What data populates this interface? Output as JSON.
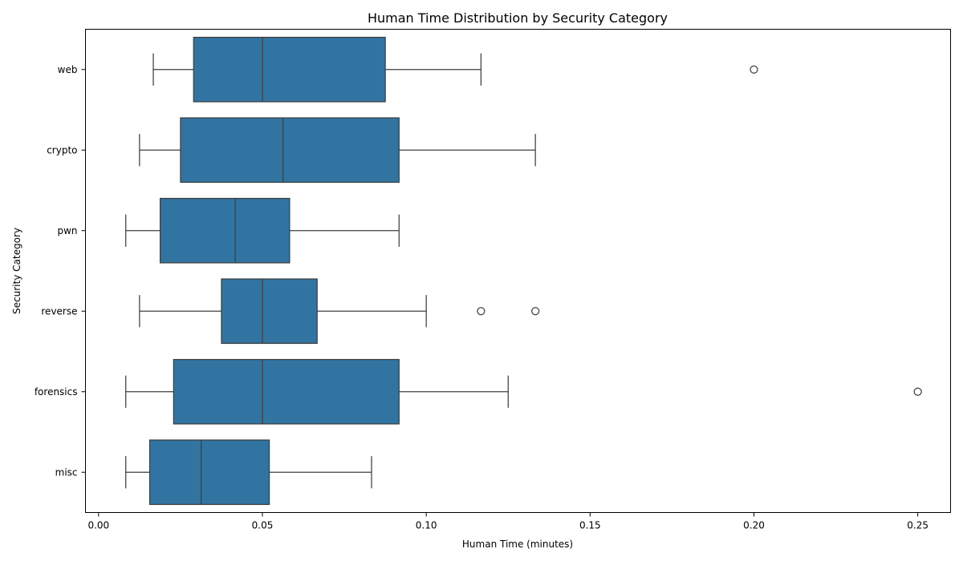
{
  "chart_data": {
    "type": "boxplot",
    "orientation": "horizontal",
    "title": "Human Time Distribution by Security Category",
    "xlabel": "Human Time (minutes)",
    "ylabel": "Security Category",
    "xlim": [
      -0.004,
      0.26
    ],
    "xticks": [
      0.0,
      0.05,
      0.1,
      0.15,
      0.2,
      0.25
    ],
    "xtick_labels": [
      "0.00",
      "0.05",
      "0.10",
      "0.15",
      "0.20",
      "0.25"
    ],
    "categories": [
      "web",
      "crypto",
      "pwn",
      "reverse",
      "forensics",
      "misc"
    ],
    "boxes": [
      {
        "category": "web",
        "whisker_low": 0.0167,
        "q1": 0.029,
        "median": 0.05,
        "q3": 0.0875,
        "whisker_high": 0.1167,
        "outliers": [
          0.2
        ]
      },
      {
        "category": "crypto",
        "whisker_low": 0.0125,
        "q1": 0.025,
        "median": 0.0563,
        "q3": 0.0917,
        "whisker_high": 0.1333,
        "outliers": []
      },
      {
        "category": "pwn",
        "whisker_low": 0.0083,
        "q1": 0.0188,
        "median": 0.0417,
        "q3": 0.0583,
        "whisker_high": 0.0917,
        "outliers": []
      },
      {
        "category": "reverse",
        "whisker_low": 0.0125,
        "q1": 0.0375,
        "median": 0.05,
        "q3": 0.0667,
        "whisker_high": 0.1,
        "outliers": [
          0.1167,
          0.1333
        ]
      },
      {
        "category": "forensics",
        "whisker_low": 0.0083,
        "q1": 0.0229,
        "median": 0.05,
        "q3": 0.0917,
        "whisker_high": 0.125,
        "outliers": [
          0.25
        ]
      },
      {
        "category": "misc",
        "whisker_low": 0.0083,
        "q1": 0.0156,
        "median": 0.0313,
        "q3": 0.0521,
        "whisker_high": 0.0833,
        "outliers": []
      }
    ],
    "box_color": "#3274a1",
    "line_color": "#3f3f3f",
    "grid": false,
    "legend": "none"
  }
}
